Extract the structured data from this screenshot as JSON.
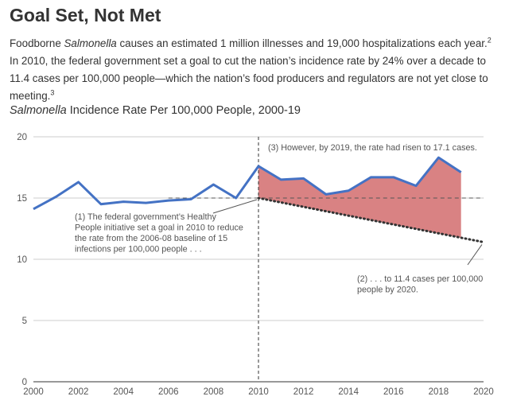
{
  "title": "Goal Set, Not Met",
  "subtitle": {
    "p1": "Foodborne ",
    "p1_italic": "Salmonella",
    "p2": " causes an estimated 1 million illnesses and 19,000 hospitalizations each year.",
    "ref1": "2",
    "p3": " In 2010, the federal government set a goal to cut the nation’s incidence rate by 24% over a decade to 11.4 cases per 100,000 people—which the nation’s food producers and regulators are not yet close to meeting.",
    "ref2": "3"
  },
  "chart_title": {
    "italic": "Salmonella",
    "rest": " Incidence Rate Per 100,000 People, 2000-19"
  },
  "colors": {
    "line": "#4472c4",
    "gap_fill": "#d98283",
    "text": "#555555",
    "grid": "#cccccc"
  },
  "chart_data": {
    "type": "line",
    "x": [
      2000,
      2001,
      2002,
      2003,
      2004,
      2005,
      2006,
      2007,
      2008,
      2009,
      2010,
      2011,
      2012,
      2013,
      2014,
      2015,
      2016,
      2017,
      2018,
      2019
    ],
    "series": [
      {
        "values": [
          14.1,
          15.1,
          16.3,
          14.5,
          14.7,
          14.6,
          14.8,
          14.9,
          16.1,
          15.0,
          17.6,
          16.5,
          16.6,
          15.3,
          15.6,
          16.7,
          16.7,
          16.0,
          18.3,
          17.1
        ]
      }
    ],
    "baseline": 15,
    "goal": {
      "x": [
        2010,
        2020
      ],
      "y": [
        15,
        11.4
      ]
    },
    "gap_fill": {
      "from": 2010,
      "to": 2019
    },
    "xlim": [
      2000,
      2020
    ],
    "ylim": [
      0,
      20
    ],
    "x_ticks": [
      2000,
      2002,
      2004,
      2006,
      2008,
      2010,
      2012,
      2014,
      2016,
      2018,
      2020
    ],
    "y_ticks": [
      0,
      5,
      10,
      15,
      20
    ],
    "grid": true,
    "annotations": [
      {
        "lines": [
          "(1) The federal government’s Healthy",
          "People initiative set a goal in 2010 to reduce",
          "the rate from the 2006-08 baseline of 15",
          "infections per 100,000 people . . ."
        ]
      },
      {
        "lines": [
          "(2) . . . to 11.4 cases per 100,000",
          "people by 2020."
        ]
      },
      {
        "lines": [
          "(3) However, by 2019, the rate had risen to 17.1 cases."
        ]
      }
    ]
  }
}
